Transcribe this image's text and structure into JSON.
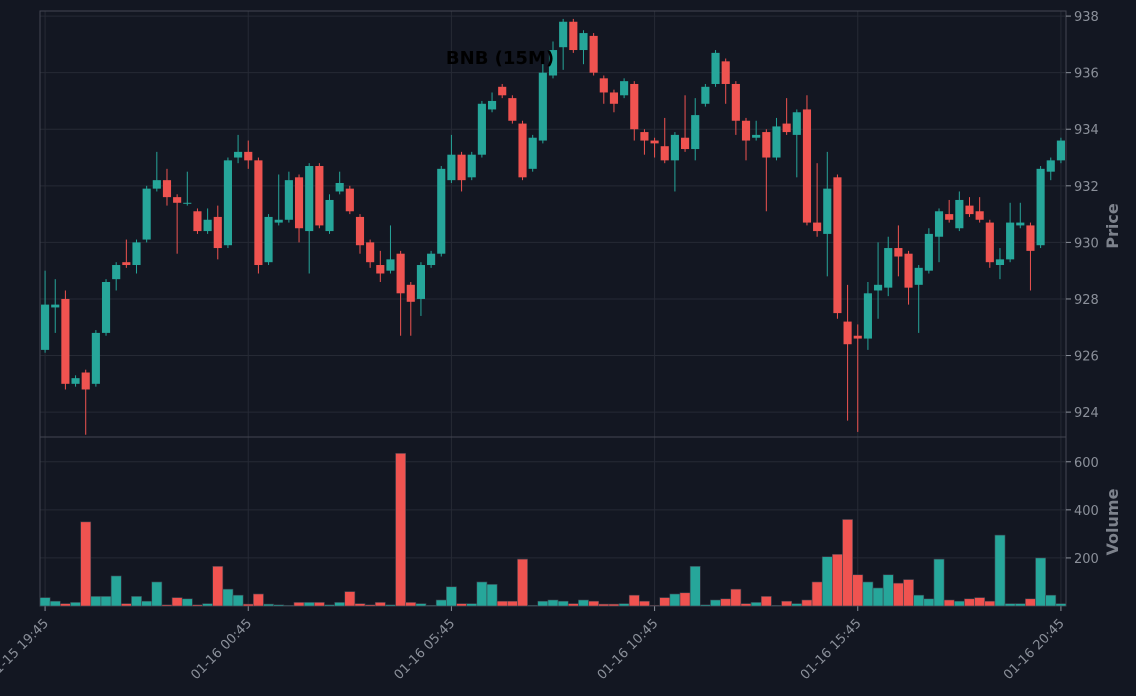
{
  "chart_data": {
    "type": "candlestick",
    "title": "BNB (15M)",
    "ylabel": "Price",
    "volume_label": "Volume",
    "up_color": "#26a69a",
    "down_color": "#ef5350",
    "grid": true,
    "categories": [
      "01-15 19:45",
      null,
      null,
      null,
      null,
      null,
      null,
      null,
      null,
      null,
      null,
      null,
      null,
      null,
      null,
      null,
      null,
      null,
      null,
      null,
      "01-16 00:45",
      null,
      null,
      null,
      null,
      null,
      null,
      null,
      null,
      null,
      null,
      null,
      null,
      null,
      null,
      null,
      null,
      null,
      null,
      null,
      "01-16 05:45",
      null,
      null,
      null,
      null,
      null,
      null,
      null,
      null,
      null,
      null,
      null,
      null,
      null,
      null,
      null,
      null,
      null,
      null,
      null,
      "01-16 10:45",
      null,
      null,
      null,
      null,
      null,
      null,
      null,
      null,
      null,
      null,
      null,
      null,
      null,
      null,
      null,
      null,
      null,
      null,
      null,
      "01-16 15:45",
      null,
      null,
      null,
      null,
      null,
      null,
      null,
      null,
      null,
      null,
      null,
      null,
      null,
      null,
      null,
      null,
      null,
      null,
      null,
      "01-16 20:45"
    ],
    "open": [
      926.2,
      927.7,
      928.0,
      925.0,
      925.4,
      925.0,
      926.8,
      928.7,
      929.3,
      929.2,
      930.1,
      931.9,
      932.2,
      931.6,
      931.4,
      931.1,
      930.4,
      930.9,
      929.9,
      933.0,
      933.2,
      932.9,
      929.3,
      930.7,
      930.8,
      932.3,
      930.4,
      932.7,
      930.4,
      931.8,
      931.9,
      930.9,
      930.0,
      929.2,
      929.0,
      929.6,
      928.5,
      928.0,
      929.2,
      929.6,
      932.2,
      933.1,
      932.3,
      933.1,
      934.7,
      935.5,
      935.1,
      934.2,
      932.6,
      933.6,
      935.9,
      936.9,
      937.8,
      936.8,
      937.3,
      935.8,
      935.3,
      935.2,
      935.6,
      933.9,
      933.6,
      933.4,
      932.9,
      933.7,
      933.3,
      934.9,
      935.6,
      936.4,
      935.6,
      934.3,
      933.7,
      933.9,
      933.0,
      934.2,
      933.8,
      934.7,
      930.7,
      930.3,
      932.3,
      927.2,
      926.7,
      926.6,
      928.3,
      928.4,
      929.8,
      929.6,
      928.5,
      929.0,
      930.2,
      931.0,
      930.5,
      931.3,
      931.1,
      930.7,
      929.2,
      929.4,
      930.6,
      930.6,
      929.9,
      932.5,
      932.9
    ],
    "high": [
      929.0,
      928.7,
      928.3,
      925.3,
      925.5,
      926.9,
      928.7,
      929.3,
      930.1,
      930.1,
      932.0,
      933.2,
      932.6,
      931.7,
      932.5,
      931.2,
      931.2,
      931.3,
      933.0,
      933.8,
      933.6,
      933.0,
      931.0,
      932.4,
      932.5,
      932.4,
      932.8,
      932.8,
      931.7,
      932.5,
      932.0,
      931.0,
      930.1,
      929.7,
      930.6,
      929.7,
      928.6,
      929.3,
      929.7,
      932.7,
      933.8,
      933.2,
      933.2,
      935.0,
      935.3,
      935.6,
      935.2,
      934.3,
      933.8,
      936.3,
      937.1,
      937.9,
      937.9,
      937.5,
      937.4,
      935.9,
      935.4,
      935.8,
      935.7,
      934.0,
      933.7,
      934.4,
      933.9,
      935.2,
      935.1,
      935.6,
      936.8,
      936.5,
      935.7,
      934.4,
      934.3,
      934.0,
      934.4,
      935.1,
      934.7,
      935.2,
      932.8,
      933.2,
      932.4,
      928.5,
      927.1,
      928.6,
      930.0,
      930.2,
      930.6,
      929.7,
      929.2,
      930.5,
      931.2,
      931.5,
      931.8,
      931.6,
      931.6,
      930.8,
      929.8,
      931.4,
      931.4,
      930.7,
      932.7,
      933.0,
      933.7
    ],
    "low": [
      926.1,
      926.8,
      924.8,
      924.9,
      923.2,
      924.9,
      926.7,
      928.3,
      929.1,
      928.9,
      930.0,
      931.8,
      931.3,
      929.6,
      931.3,
      930.3,
      930.3,
      929.4,
      929.8,
      932.8,
      932.6,
      928.9,
      929.2,
      930.6,
      930.7,
      930.0,
      928.9,
      930.5,
      930.3,
      931.7,
      931.0,
      929.6,
      929.1,
      928.6,
      928.9,
      926.7,
      926.7,
      927.4,
      929.1,
      929.5,
      932.1,
      931.8,
      932.2,
      933.0,
      934.6,
      935.1,
      934.2,
      932.2,
      932.5,
      933.5,
      935.8,
      936.1,
      936.7,
      936.3,
      935.9,
      934.9,
      934.6,
      935.1,
      933.6,
      933.1,
      933.0,
      932.8,
      931.8,
      933.2,
      932.9,
      934.8,
      935.5,
      934.9,
      933.8,
      932.9,
      933.6,
      931.1,
      932.9,
      933.8,
      932.3,
      930.6,
      930.2,
      928.8,
      927.3,
      923.7,
      923.3,
      926.2,
      927.3,
      928.1,
      928.8,
      927.8,
      926.8,
      928.9,
      929.3,
      930.7,
      930.4,
      930.9,
      930.7,
      929.1,
      928.7,
      929.3,
      930.5,
      928.3,
      929.8,
      932.2,
      932.8
    ],
    "close": [
      927.8,
      927.8,
      925.0,
      925.2,
      924.8,
      926.8,
      928.6,
      929.2,
      929.2,
      930.0,
      931.9,
      932.2,
      931.6,
      931.4,
      931.4,
      930.4,
      930.8,
      929.8,
      932.9,
      933.2,
      932.9,
      929.2,
      930.9,
      930.8,
      932.2,
      930.5,
      932.7,
      930.6,
      931.5,
      932.1,
      931.1,
      929.9,
      929.3,
      928.9,
      929.4,
      928.2,
      927.9,
      929.2,
      929.6,
      932.6,
      933.1,
      932.2,
      933.1,
      934.9,
      935.0,
      935.2,
      934.3,
      932.3,
      933.7,
      936.0,
      936.8,
      937.8,
      936.8,
      937.4,
      936.0,
      935.3,
      934.9,
      935.7,
      934.0,
      933.6,
      933.5,
      932.9,
      933.8,
      933.3,
      934.5,
      935.5,
      936.7,
      935.6,
      934.3,
      933.6,
      933.8,
      933.0,
      934.1,
      933.9,
      934.6,
      930.7,
      930.4,
      931.9,
      927.5,
      926.4,
      926.6,
      928.2,
      928.5,
      929.8,
      929.5,
      928.4,
      929.1,
      930.3,
      931.1,
      930.8,
      931.5,
      931.0,
      930.8,
      929.3,
      929.4,
      930.7,
      930.7,
      929.7,
      932.6,
      932.9,
      933.6
    ],
    "volume": [
      35,
      20,
      10,
      15,
      350,
      40,
      40,
      125,
      10,
      40,
      20,
      100,
      5,
      35,
      30,
      5,
      10,
      165,
      70,
      45,
      8,
      50,
      8,
      5,
      3,
      15,
      15,
      15,
      5,
      15,
      60,
      10,
      5,
      15,
      5,
      635,
      15,
      10,
      3,
      25,
      80,
      10,
      10,
      100,
      90,
      20,
      20,
      195,
      3,
      20,
      25,
      20,
      10,
      25,
      20,
      8,
      8,
      10,
      45,
      20,
      3,
      35,
      50,
      55,
      165,
      5,
      25,
      30,
      70,
      10,
      15,
      40,
      3,
      20,
      10,
      25,
      100,
      205,
      215,
      360,
      130,
      100,
      75,
      130,
      95,
      110,
      45,
      30,
      195,
      25,
      20,
      30,
      35,
      20,
      295,
      10,
      10,
      30,
      200,
      45,
      10
    ],
    "ylim": [
      923.12,
      938.18
    ],
    "yticks": [
      924,
      926,
      928,
      930,
      932,
      934,
      936,
      938
    ],
    "volume_ylim": [
      0,
      703
    ],
    "volume_yticks": [
      200,
      400,
      600
    ]
  }
}
